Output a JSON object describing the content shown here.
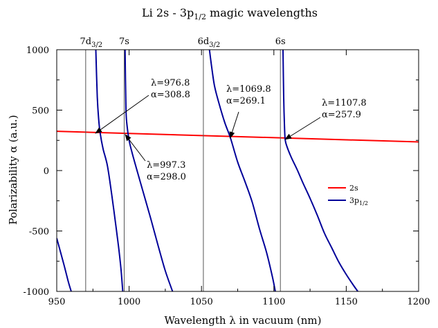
{
  "chart_data": {
    "type": "line",
    "title": "Li 2s - 3p1/2 magic wavelengths",
    "title_parts": {
      "main": "Li 2s - 3p",
      "sub": "1/2",
      "rest": " magic wavelengths"
    },
    "xlabel": "Wavelength λ in vacuum (nm)",
    "ylabel": "Polarizability α (a.u.)",
    "xlim": [
      950,
      1200
    ],
    "ylim": [
      -1000,
      1000
    ],
    "xticks": [
      950,
      1000,
      1050,
      1100,
      1150,
      1200
    ],
    "xtick_labels": [
      "950",
      "1000",
      "1050",
      "1100",
      "1150",
      "1200"
    ],
    "yticks": [
      -1000,
      -500,
      0,
      500,
      1000
    ],
    "ytick_labels": [
      "-1000",
      "-500",
      "0",
      "500",
      "1000"
    ],
    "grid": false,
    "legend_position": "right",
    "series": [
      {
        "name": "2s",
        "color": "#ff0000",
        "x": [
          950,
          1200
        ],
        "y": [
          325,
          237
        ]
      },
      {
        "name": "3p1/2",
        "color": "#000099",
        "segments": [
          {
            "x": [
              950,
              955,
              958,
              960
            ],
            "y": [
              -560,
              -780,
              -920,
              -1000
            ]
          },
          {
            "x": [
              977,
              978,
              979,
              980,
              982,
              985,
              988,
              991,
              993,
              994.5,
              995.6
            ],
            "y": [
              1000,
              610,
              420,
              310,
              180,
              40,
              -200,
              -470,
              -660,
              -830,
              -1000
            ]
          },
          {
            "x": [
              997.2,
              997.8,
              998.5,
              1000,
              1002,
              1005,
              1010,
              1015,
              1020,
              1025,
              1030
            ],
            "y": [
              1000,
              520,
              380,
              250,
              150,
              20,
              -190,
              -400,
              -620,
              -830,
              -1000
            ]
          },
          {
            "x": [
              1055.5,
              1057,
              1059,
              1062,
              1066,
              1070,
              1075,
              1080,
              1085,
              1090,
              1095,
              1099,
              1101
            ],
            "y": [
              1000,
              860,
              700,
              560,
              400,
              270,
              70,
              -90,
              -260,
              -480,
              -680,
              -880,
              -1000
            ]
          },
          {
            "x": [
              1106.3,
              1106.8,
              1107.3,
              1107.8,
              1109,
              1112,
              1116,
              1120,
              1125,
              1130,
              1135,
              1140,
              1145,
              1150,
              1155,
              1158
            ],
            "y": [
              1000,
              600,
              380,
              258,
              200,
              110,
              10,
              -100,
              -230,
              -370,
              -520,
              -640,
              -760,
              -860,
              -950,
              -1000
            ]
          }
        ]
      }
    ],
    "vertical_lines": [
      {
        "x": 970,
        "label": "7d",
        "sub": "3/2"
      },
      {
        "x": 996.6,
        "label": "7s",
        "sub": ""
      },
      {
        "x": 1051.3,
        "label": "6d",
        "sub": "3/2"
      },
      {
        "x": 1104.5,
        "label": "6s",
        "sub": ""
      }
    ],
    "legend": [
      {
        "label": "2s",
        "sub": "",
        "color": "#ff0000"
      },
      {
        "label": "3p",
        "sub": "1/2",
        "color": "#000099"
      }
    ],
    "annotations": [
      {
        "lines": [
          "λ=976.8",
          "α=308.8"
        ],
        "point": [
          976.8,
          308.8
        ]
      },
      {
        "lines": [
          "λ=997.3",
          "α=298.0"
        ],
        "point": [
          997.3,
          298.0
        ]
      },
      {
        "lines": [
          "λ=1069.8",
          "α=269.1"
        ],
        "point": [
          1069.8,
          269.1
        ]
      },
      {
        "lines": [
          "λ=1107.8",
          "α=257.9"
        ],
        "point": [
          1107.8,
          257.9
        ]
      }
    ]
  }
}
